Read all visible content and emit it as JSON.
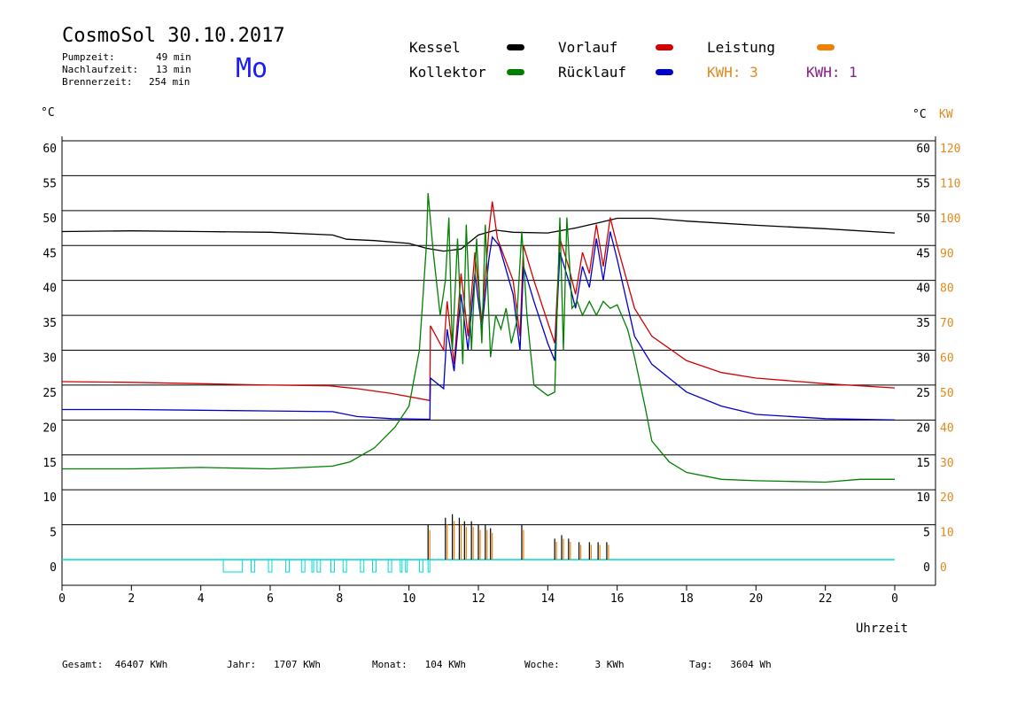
{
  "header": {
    "title": "CosmoSol 30.10.2017",
    "pumpzeit_label": "Pumpzeit:",
    "pumpzeit_value": "49 min",
    "nachlaufzeit_label": "Nachlaufzeit:",
    "nachlaufzeit_value": "13 min",
    "brennerzeit_label": "Brennerzeit:",
    "brennerzeit_value": "254 min",
    "weekday": "Mo"
  },
  "legend": {
    "kessel": "Kessel",
    "kollektor": "Kollektor",
    "vorlauf": "Vorlauf",
    "ruecklauf": "Rücklauf",
    "leistung": "Leistung",
    "kwh1": "KWH: 3",
    "kwh2": "KWH: 1"
  },
  "colors": {
    "kessel": "#000000",
    "kollektor": "#007f00",
    "vorlauf": "#d40000",
    "ruecklauf": "#0000c8",
    "leistung": "#f08000",
    "kwh2": "#8b1a8b",
    "pump": "#00d8d8",
    "kw_axis": "#e08a1e"
  },
  "axes": {
    "left_unit": "°C",
    "right_unit": "°C",
    "kw_unit": "KW",
    "xlabel": "Uhrzeit"
  },
  "footer": {
    "gesamt": "Gesamt:  46407 KWh",
    "jahr": "Jahr:   1707 KWh",
    "monat": "Monat:   104 KWh",
    "woche": "Woche:      3 KWh",
    "tag": "Tag:   3604 Wh"
  },
  "chart_data": {
    "type": "line",
    "xlabel": "Uhrzeit",
    "ylabel": "°C",
    "xlim": [
      0,
      24
    ],
    "ylim": [
      0,
      60
    ],
    "y2lim": [
      0,
      120
    ],
    "y2label": "KW",
    "x_ticks": [
      "0",
      "2",
      "4",
      "6",
      "8",
      "10",
      "12",
      "14",
      "16",
      "18",
      "20",
      "22",
      "0"
    ],
    "y_ticks": [
      0,
      5,
      10,
      15,
      20,
      25,
      30,
      35,
      40,
      45,
      50,
      55,
      60
    ],
    "y2_ticks": [
      0,
      10,
      20,
      30,
      40,
      50,
      60,
      70,
      80,
      90,
      100,
      110,
      120
    ],
    "grid": true,
    "series": [
      {
        "name": "Kessel",
        "color": "#000000",
        "points": [
          [
            0,
            47
          ],
          [
            2,
            47.1
          ],
          [
            4,
            47
          ],
          [
            6,
            46.9
          ],
          [
            7.8,
            46.5
          ],
          [
            8.2,
            45.9
          ],
          [
            9,
            45.7
          ],
          [
            10,
            45.3
          ],
          [
            10.5,
            44.6
          ],
          [
            11,
            44.2
          ],
          [
            11.5,
            44.5
          ],
          [
            12,
            46.5
          ],
          [
            12.5,
            47.2
          ],
          [
            13,
            46.9
          ],
          [
            14,
            46.8
          ],
          [
            14.8,
            47.5
          ],
          [
            15.5,
            48.3
          ],
          [
            16,
            48.9
          ],
          [
            17,
            48.9
          ],
          [
            18,
            48.5
          ],
          [
            20,
            47.9
          ],
          [
            22,
            47.4
          ],
          [
            24,
            46.8
          ]
        ]
      },
      {
        "name": "Vorlauf",
        "color": "#d40000",
        "points": [
          [
            0,
            25.5
          ],
          [
            2,
            25.4
          ],
          [
            4,
            25.2
          ],
          [
            6,
            25
          ],
          [
            7.7,
            24.9
          ],
          [
            8.5,
            24.5
          ],
          [
            9.5,
            23.8
          ],
          [
            10.6,
            22.8
          ],
          [
            10.62,
            33.5
          ],
          [
            11,
            30
          ],
          [
            11.1,
            37
          ],
          [
            11.3,
            28
          ],
          [
            11.5,
            41
          ],
          [
            11.7,
            32
          ],
          [
            11.9,
            44
          ],
          [
            12.1,
            34
          ],
          [
            12.3,
            47
          ],
          [
            12.4,
            51.3
          ],
          [
            12.55,
            46
          ],
          [
            13,
            40
          ],
          [
            13.2,
            32
          ],
          [
            13.3,
            45
          ],
          [
            13.6,
            40
          ],
          [
            14,
            34
          ],
          [
            14.2,
            31
          ],
          [
            14.35,
            46
          ],
          [
            14.6,
            42
          ],
          [
            14.8,
            38
          ],
          [
            15,
            44
          ],
          [
            15.2,
            41
          ],
          [
            15.4,
            48
          ],
          [
            15.6,
            42
          ],
          [
            15.8,
            49
          ],
          [
            16,
            45
          ],
          [
            16.5,
            36
          ],
          [
            17,
            32
          ],
          [
            18,
            28.5
          ],
          [
            19,
            26.8
          ],
          [
            20,
            26
          ],
          [
            22,
            25.2
          ],
          [
            24,
            24.6
          ]
        ]
      },
      {
        "name": "Rücklauf",
        "color": "#0000c8",
        "points": [
          [
            0,
            21.5
          ],
          [
            2,
            21.5
          ],
          [
            4,
            21.4
          ],
          [
            6,
            21.3
          ],
          [
            7.8,
            21.2
          ],
          [
            8.5,
            20.5
          ],
          [
            9.5,
            20.2
          ],
          [
            10.6,
            20.1
          ],
          [
            10.62,
            26
          ],
          [
            11,
            24.5
          ],
          [
            11.1,
            33
          ],
          [
            11.3,
            27
          ],
          [
            11.5,
            38
          ],
          [
            11.7,
            30
          ],
          [
            11.9,
            41
          ],
          [
            12.1,
            33
          ],
          [
            12.3,
            43
          ],
          [
            12.4,
            46.2
          ],
          [
            12.6,
            45
          ],
          [
            13,
            38
          ],
          [
            13.2,
            30
          ],
          [
            13.3,
            42
          ],
          [
            13.6,
            37
          ],
          [
            14,
            31
          ],
          [
            14.2,
            28.5
          ],
          [
            14.35,
            44
          ],
          [
            14.6,
            40
          ],
          [
            14.8,
            36
          ],
          [
            15,
            42
          ],
          [
            15.2,
            39
          ],
          [
            15.4,
            46
          ],
          [
            15.6,
            40
          ],
          [
            15.8,
            47
          ],
          [
            16,
            43
          ],
          [
            16.5,
            32
          ],
          [
            17,
            28
          ],
          [
            18,
            24
          ],
          [
            19,
            22
          ],
          [
            20,
            20.8
          ],
          [
            22,
            20.2
          ],
          [
            24,
            20
          ]
        ]
      },
      {
        "name": "Kollektor",
        "color": "#007f00",
        "points": [
          [
            0,
            13
          ],
          [
            2,
            13
          ],
          [
            4,
            13.2
          ],
          [
            6,
            13
          ],
          [
            7,
            13.2
          ],
          [
            7.8,
            13.4
          ],
          [
            8.3,
            14
          ],
          [
            9,
            16
          ],
          [
            9.6,
            19
          ],
          [
            10,
            22
          ],
          [
            10.3,
            30
          ],
          [
            10.5,
            45
          ],
          [
            10.55,
            52.5
          ],
          [
            10.7,
            44
          ],
          [
            10.9,
            35
          ],
          [
            11.05,
            40
          ],
          [
            11.15,
            49
          ],
          [
            11.25,
            30
          ],
          [
            11.4,
            46
          ],
          [
            11.55,
            28
          ],
          [
            11.65,
            48
          ],
          [
            11.8,
            30
          ],
          [
            11.95,
            46
          ],
          [
            12.1,
            31
          ],
          [
            12.2,
            48
          ],
          [
            12.35,
            29
          ],
          [
            12.5,
            35
          ],
          [
            12.65,
            33
          ],
          [
            12.8,
            36
          ],
          [
            12.95,
            31
          ],
          [
            13.1,
            34
          ],
          [
            13.25,
            47
          ],
          [
            13.4,
            35
          ],
          [
            13.6,
            25
          ],
          [
            14,
            23.5
          ],
          [
            14.2,
            24
          ],
          [
            14.35,
            49
          ],
          [
            14.45,
            30
          ],
          [
            14.55,
            49
          ],
          [
            14.7,
            36
          ],
          [
            14.85,
            37
          ],
          [
            15,
            35
          ],
          [
            15.2,
            37
          ],
          [
            15.4,
            35
          ],
          [
            15.6,
            37
          ],
          [
            15.8,
            36
          ],
          [
            16,
            36.5
          ],
          [
            16.3,
            33
          ],
          [
            16.5,
            29
          ],
          [
            16.8,
            22
          ],
          [
            17,
            17
          ],
          [
            17.5,
            14
          ],
          [
            18,
            12.5
          ],
          [
            19,
            11.5
          ],
          [
            20,
            11.3
          ],
          [
            21,
            11.2
          ],
          [
            22,
            11.1
          ],
          [
            23,
            11.5
          ],
          [
            24,
            11.5
          ]
        ]
      }
    ],
    "leistung_bars": {
      "unit": "KW",
      "x": [
        10.55,
        11.05,
        11.25,
        11.45,
        11.6,
        11.8,
        12.0,
        12.2,
        12.35,
        13.25,
        14.2,
        14.4,
        14.6,
        14.9,
        15.2,
        15.45,
        15.7
      ],
      "values": [
        10,
        12,
        13,
        12,
        11,
        11,
        10,
        10,
        9,
        10,
        6,
        7,
        6,
        5,
        5,
        5,
        5
      ]
    },
    "pump_intervals": [
      [
        4.65,
        5.2
      ],
      [
        5.45,
        5.55
      ],
      [
        5.95,
        6.05
      ],
      [
        6.45,
        6.55
      ],
      [
        6.9,
        7.0
      ],
      [
        7.2,
        7.25
      ],
      [
        7.35,
        7.45
      ],
      [
        7.75,
        7.85
      ],
      [
        8.1,
        8.2
      ],
      [
        8.6,
        8.7
      ],
      [
        8.95,
        9.05
      ],
      [
        9.4,
        9.5
      ],
      [
        9.75,
        9.8
      ],
      [
        9.9,
        9.95
      ],
      [
        10.3,
        10.4
      ],
      [
        10.55,
        10.6
      ]
    ]
  }
}
